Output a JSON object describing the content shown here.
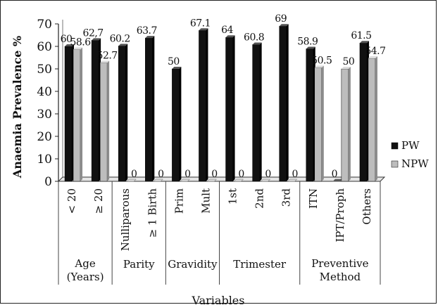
{
  "chart_data": {
    "type": "bar",
    "title": "",
    "ylabel": "Anaemia Prevalence %",
    "xlabel": "Variables",
    "ylim": [
      0,
      70
    ],
    "yticks": [
      "0",
      "10",
      "20",
      "30",
      "40",
      "50",
      "60",
      "70"
    ],
    "legend_position": "right",
    "grid": false,
    "categories": [
      "< 20",
      "≥ 20",
      "Nulliparous",
      "≥ 1 Birth",
      "Prim",
      "Mult",
      "1st",
      "2nd",
      "3rd",
      "ITN",
      "IPT/Proph",
      "Others"
    ],
    "groups": [
      {
        "label": "Age (Years)",
        "count": 2
      },
      {
        "label": "Parity",
        "count": 2
      },
      {
        "label": "Gravidity",
        "count": 2
      },
      {
        "label": "Trimester",
        "count": 3
      },
      {
        "label": "Preventive Method",
        "count": 3
      }
    ],
    "series": [
      {
        "name": "PW",
        "color": "#111111",
        "values": [
          60,
          62.7,
          60.2,
          63.7,
          50,
          67.1,
          64,
          60.8,
          69,
          58.9,
          0,
          61.5
        ],
        "labels": [
          "60",
          "62,7",
          "60.2",
          "63.7",
          "50",
          "67.1",
          "64",
          "60.8",
          "69",
          "58.9",
          "0",
          "61.5"
        ]
      },
      {
        "name": "NPW",
        "color": "#bdbdbd",
        "values": [
          58.6,
          52.7,
          0,
          0,
          0,
          0,
          0,
          0,
          0,
          50.5,
          50,
          54.7
        ],
        "labels": [
          "58.6",
          "52.7",
          "0",
          "0",
          "0",
          "0",
          "0",
          "0",
          "0",
          "50.5",
          "50",
          "54.7"
        ]
      }
    ]
  }
}
